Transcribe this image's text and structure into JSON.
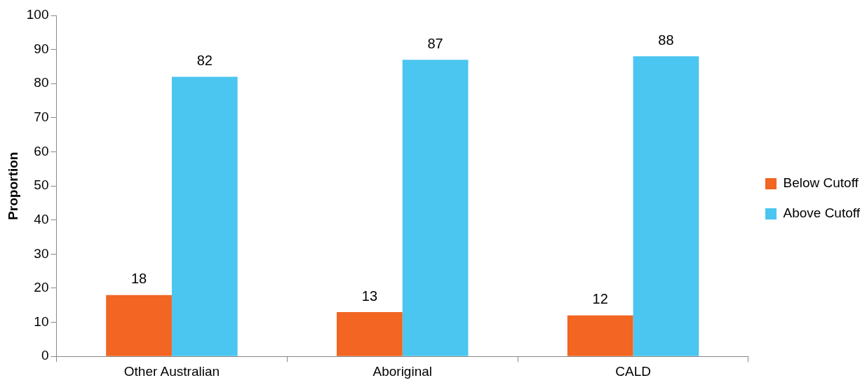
{
  "chart_data": {
    "type": "bar",
    "ylabel": "Proportion",
    "categories": [
      "Other Australian",
      "Aboriginal",
      "CALD"
    ],
    "series": [
      {
        "name": "Below Cutoff",
        "color": "#f26522",
        "values": [
          18,
          13,
          12
        ]
      },
      {
        "name": "Above Cutoff",
        "color": "#4bc6f0",
        "values": [
          82,
          87,
          88
        ]
      }
    ],
    "ylim": [
      0,
      100
    ],
    "yticks": [
      0,
      10,
      20,
      30,
      40,
      50,
      60,
      70,
      80,
      90,
      100
    ],
    "grid": false,
    "legend": "right",
    "data_labels": true
  }
}
